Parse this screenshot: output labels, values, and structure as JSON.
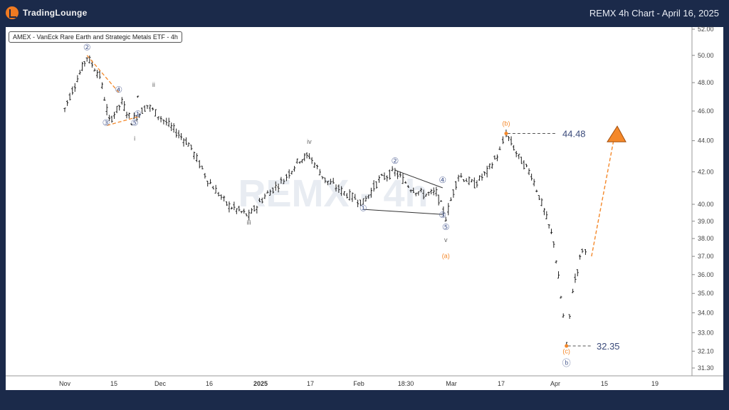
{
  "brand": {
    "logo_text": "TradingLounge"
  },
  "header": {
    "title": "REMX 4h Chart - April 16, 2025"
  },
  "symbol_label": "AMEX - VanEck Rare Earth and Strategic Metals ETF - 4h",
  "watermark": "REMX - 4h",
  "colors": {
    "background": "#1b2a4a",
    "orange": "#f4882a",
    "bars": "#222222",
    "wave_circle": "#5a6a9a"
  },
  "chart_data": {
    "type": "ohlc",
    "title": "REMX 4h Chart - April 16, 2025",
    "y_axis": {
      "scale": "log",
      "ticks": [
        "52.00",
        "50.00",
        "48.00",
        "46.00",
        "44.00",
        "42.00",
        "40.00",
        "39.00",
        "38.00",
        "37.00",
        "36.00",
        "35.00",
        "34.00",
        "33.00",
        "32.10",
        "31.30"
      ]
    },
    "x_axis": {
      "ticks": [
        "Nov",
        "15",
        "Dec",
        "16",
        "2025",
        "17",
        "Feb",
        "18:30",
        "Mar",
        "17",
        "Apr",
        "15",
        "19"
      ]
    },
    "price_series": [
      {
        "t": "Oct 28",
        "p": 47.0
      },
      {
        "t": "Nov 1",
        "p": 46.2
      },
      {
        "t": "Nov 5",
        "p": 48.3
      },
      {
        "t": "Nov 8",
        "p": 49.9
      },
      {
        "t": "Nov 12",
        "p": 48.5
      },
      {
        "t": "Nov 15",
        "p": 45.3
      },
      {
        "t": "Nov 19",
        "p": 46.6
      },
      {
        "t": "Nov 22",
        "p": 45.3
      },
      {
        "t": "Nov 27",
        "p": 46.4
      },
      {
        "t": "Dec 3",
        "p": 45.2
      },
      {
        "t": "Dec 10",
        "p": 43.8
      },
      {
        "t": "Dec 16",
        "p": 41.5
      },
      {
        "t": "Dec 22",
        "p": 40.0
      },
      {
        "t": "Dec 29",
        "p": 39.3
      },
      {
        "t": "Jan 3",
        "p": 40.5
      },
      {
        "t": "Jan 9",
        "p": 41.5
      },
      {
        "t": "Jan 14",
        "p": 42.8
      },
      {
        "t": "Jan 17",
        "p": 43.0
      },
      {
        "t": "Jan 22",
        "p": 41.5
      },
      {
        "t": "Jan 28",
        "p": 40.7
      },
      {
        "t": "Feb 3",
        "p": 40.1
      },
      {
        "t": "Feb 8",
        "p": 41.5
      },
      {
        "t": "Feb 13",
        "p": 42.0
      },
      {
        "t": "Feb 18",
        "p": 41.0
      },
      {
        "t": "Feb 22",
        "p": 40.6
      },
      {
        "t": "Feb 26",
        "p": 40.7
      },
      {
        "t": "Mar 1",
        "p": 39.2
      },
      {
        "t": "Mar 5",
        "p": 41.8
      },
      {
        "t": "Mar 10",
        "p": 41.2
      },
      {
        "t": "Mar 14",
        "p": 42.0
      },
      {
        "t": "Mar 18",
        "p": 43.3
      },
      {
        "t": "Mar 20",
        "p": 44.48
      },
      {
        "t": "Mar 24",
        "p": 42.9
      },
      {
        "t": "Mar 28",
        "p": 41.8
      },
      {
        "t": "Apr 1",
        "p": 39.6
      },
      {
        "t": "Apr 4",
        "p": 37.8
      },
      {
        "t": "Apr 7",
        "p": 33.8
      },
      {
        "t": "Apr 8",
        "p": 32.35
      },
      {
        "t": "Apr 10",
        "p": 35.2
      },
      {
        "t": "Apr 13",
        "p": 37.4
      },
      {
        "t": "Apr 15",
        "p": 37.0
      }
    ],
    "levels": [
      {
        "label": "44.48",
        "value": 44.48
      },
      {
        "label": "32.35",
        "value": 32.35
      }
    ],
    "wave_labels": [
      {
        "text": "①",
        "t": "Oct 28",
        "p": 45.6
      },
      {
        "text": "②",
        "t": "Nov 8",
        "p": 50.4
      },
      {
        "text": "③",
        "t": "Nov 14",
        "p": 45.0
      },
      {
        "text": "④",
        "t": "Nov 18",
        "p": 47.3
      },
      {
        "text": "⑤",
        "t": "Nov 23",
        "p": 45.0
      },
      {
        "text": "i",
        "t": "Nov 23",
        "p": 44.0
      },
      {
        "text": "ii",
        "t": "Nov 29",
        "p": 47.7
      },
      {
        "text": "iii",
        "t": "Dec 29",
        "p": 38.8
      },
      {
        "text": "iv",
        "t": "Jan 17",
        "p": 43.8
      },
      {
        "text": "①",
        "t": "Feb 3",
        "p": 39.6
      },
      {
        "text": "②",
        "t": "Feb 13",
        "p": 42.5
      },
      {
        "text": "③",
        "t": "Feb 28",
        "p": 39.2
      },
      {
        "text": "④",
        "t": "Feb 28",
        "p": 41.3
      },
      {
        "text": "⑤",
        "t": "Mar 1",
        "p": 38.5
      },
      {
        "text": "v",
        "t": "Mar 1",
        "p": 37.8
      },
      {
        "text": "(a)",
        "t": "Mar 1",
        "p": 36.9
      },
      {
        "text": "(b)",
        "t": "Mar 20",
        "p": 45.0
      },
      {
        "text": "(c)",
        "t": "Apr 8",
        "p": 32.0
      },
      {
        "text": "ⓑ",
        "t": "Apr 8",
        "p": 31.4
      }
    ],
    "wave_lines": [
      {
        "style": "orange-dashed",
        "points": [
          [
            "Oct 28",
            45.6
          ],
          [
            "Nov 14",
            45.0
          ]
        ]
      },
      {
        "style": "orange-dashed",
        "points": [
          [
            "Nov 8",
            50.0
          ],
          [
            "Nov 18",
            47.3
          ]
        ]
      },
      {
        "style": "dark",
        "points": [
          [
            "Feb 3",
            39.7
          ],
          [
            "Feb 28",
            39.4
          ]
        ]
      },
      {
        "style": "dark",
        "points": [
          [
            "Feb 13",
            42.1
          ],
          [
            "Feb 28",
            41.0
          ]
        ]
      }
    ],
    "projection": {
      "from": [
        "Apr 15",
        37.0
      ],
      "to": [
        "Apr 24",
        44.3
      ]
    }
  }
}
